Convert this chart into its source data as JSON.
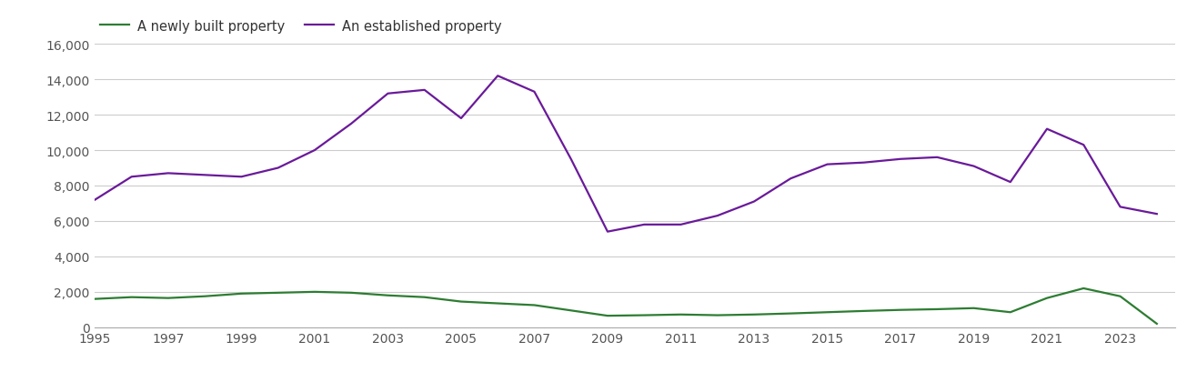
{
  "years": [
    1995,
    1996,
    1997,
    1998,
    1999,
    2000,
    2001,
    2002,
    2003,
    2004,
    2005,
    2006,
    2007,
    2008,
    2009,
    2010,
    2011,
    2012,
    2013,
    2014,
    2015,
    2016,
    2017,
    2018,
    2019,
    2020,
    2021,
    2022,
    2023,
    2024
  ],
  "new_build": [
    1600,
    1700,
    1650,
    1750,
    1900,
    1950,
    2000,
    1950,
    1800,
    1700,
    1450,
    1350,
    1250,
    950,
    650,
    680,
    720,
    680,
    720,
    780,
    850,
    920,
    980,
    1020,
    1080,
    850,
    1650,
    2200,
    1750,
    200
  ],
  "established": [
    7200,
    8500,
    8700,
    8600,
    8500,
    9000,
    10000,
    11500,
    13200,
    13400,
    11800,
    14200,
    13300,
    9500,
    5400,
    5800,
    5800,
    6300,
    7100,
    8400,
    9200,
    9300,
    9500,
    9600,
    9100,
    8200,
    11200,
    10300,
    6800,
    6400
  ],
  "new_build_color": "#2d7d32",
  "established_color": "#6a1a9a",
  "legend_new": "A newly built property",
  "legend_established": "An established property",
  "ylim": [
    0,
    16000
  ],
  "yticks": [
    0,
    2000,
    4000,
    6000,
    8000,
    10000,
    12000,
    14000,
    16000
  ],
  "xtick_years": [
    1995,
    1997,
    1999,
    2001,
    2003,
    2005,
    2007,
    2009,
    2011,
    2013,
    2015,
    2017,
    2019,
    2021,
    2023
  ],
  "xlim_left": 1995,
  "xlim_right": 2024.5,
  "background_color": "#ffffff",
  "grid_color": "#cccccc",
  "line_width": 1.6,
  "legend_fontsize": 10.5,
  "tick_fontsize": 10,
  "tick_color": "#555555"
}
